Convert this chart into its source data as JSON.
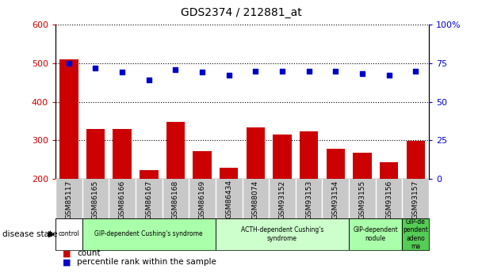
{
  "title": "GDS2374 / 212881_at",
  "samples": [
    "GSM85117",
    "GSM86165",
    "GSM86166",
    "GSM86167",
    "GSM86168",
    "GSM86169",
    "GSM86434",
    "GSM88074",
    "GSM93152",
    "GSM93153",
    "GSM93154",
    "GSM93155",
    "GSM93156",
    "GSM93157"
  ],
  "counts": [
    510,
    330,
    330,
    222,
    348,
    272,
    228,
    333,
    315,
    323,
    278,
    268,
    244,
    298
  ],
  "percentiles": [
    75,
    72,
    69,
    64,
    71,
    69,
    67,
    70,
    70,
    70,
    70,
    68,
    67,
    70
  ],
  "ylim_left": [
    200,
    600
  ],
  "ylim_right": [
    0,
    100
  ],
  "yticks_left": [
    200,
    300,
    400,
    500,
    600
  ],
  "yticks_right": [
    0,
    25,
    50,
    75,
    100
  ],
  "bar_color": "#cc0000",
  "dot_color": "#0000cc",
  "disease_groups": [
    {
      "label": "control",
      "start": 0,
      "end": 1,
      "color": "#ffffff"
    },
    {
      "label": "GIP-dependent Cushing's syndrome",
      "start": 1,
      "end": 6,
      "color": "#aaffaa"
    },
    {
      "label": "ACTH-dependent Cushing's\nsyndrome",
      "start": 6,
      "end": 11,
      "color": "#ccffcc"
    },
    {
      "label": "GIP-dependent\nnodule",
      "start": 11,
      "end": 13,
      "color": "#aaffaa"
    },
    {
      "label": "GIP-de\npendent\nadeno\nma",
      "start": 13,
      "end": 14,
      "color": "#55cc55"
    }
  ],
  "background_color": "#ffffff",
  "label_area_color": "#c8c8c8",
  "bar_border_color": "#ffffff"
}
